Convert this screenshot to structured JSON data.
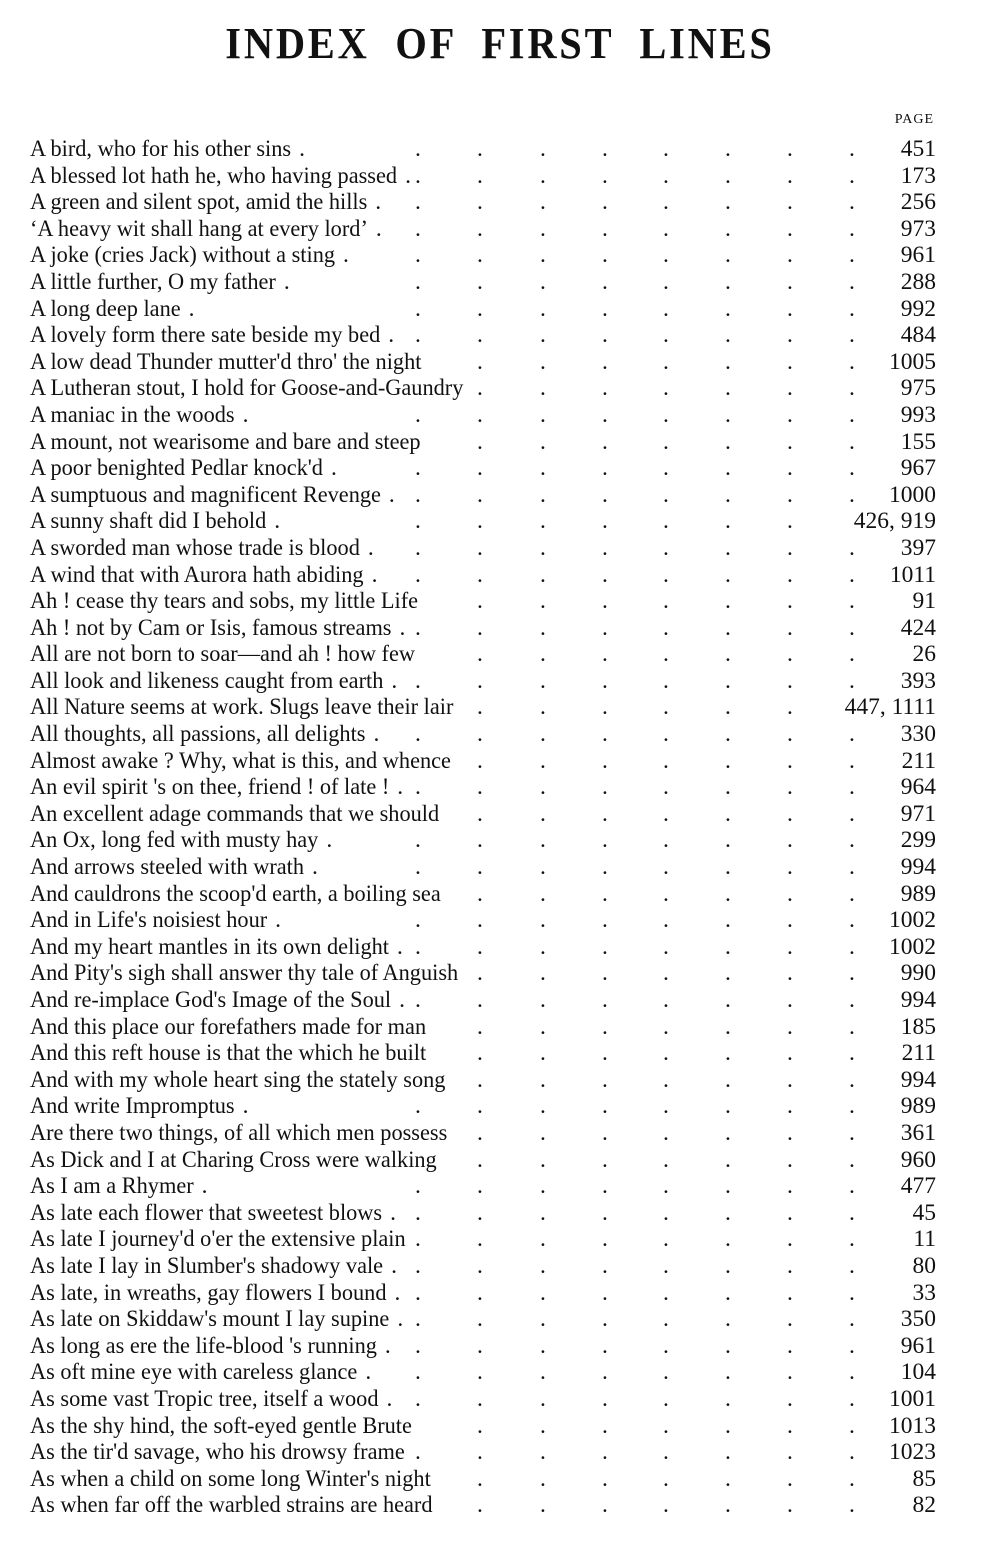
{
  "title": "INDEX OF FIRST LINES",
  "column_header": "PAGE",
  "entries": [
    {
      "line": "A bird, who for his other sins",
      "page": "451"
    },
    {
      "line": "A blessed lot hath he, who having passed",
      "page": "173"
    },
    {
      "line": "A green and silent spot, amid the hills",
      "page": "256"
    },
    {
      "line": "‘A heavy wit shall hang at every lord’",
      "page": "973"
    },
    {
      "line": "A joke (cries Jack) without a sting",
      "page": "961"
    },
    {
      "line": "A little further, O my father",
      "page": "288"
    },
    {
      "line": "A long deep lane",
      "page": "992"
    },
    {
      "line": "A lovely form there sate beside my bed",
      "page": "484"
    },
    {
      "line": "A low dead Thunder mutter'd thro' the night",
      "page": "1005"
    },
    {
      "line": "A Lutheran stout, I hold for Goose-and-Gaundry",
      "page": "975"
    },
    {
      "line": "A maniac in the woods",
      "page": "993"
    },
    {
      "line": "A mount, not wearisome and bare and steep",
      "page": "155"
    },
    {
      "line": "A poor benighted Pedlar knock'd",
      "page": "967"
    },
    {
      "line": "A sumptuous and magnificent Revenge",
      "page": "1000"
    },
    {
      "line": "A sunny shaft did I behold",
      "page": "426, 919"
    },
    {
      "line": "A sworded man whose trade is blood",
      "page": "397"
    },
    {
      "line": "A wind that with Aurora hath abiding",
      "page": "1011"
    },
    {
      "line": "Ah ! cease thy tears and sobs, my little Life",
      "page": "91"
    },
    {
      "line": "Ah ! not by Cam or Isis, famous streams",
      "page": "424"
    },
    {
      "line": "All are not born to soar—and ah ! how few",
      "page": "26"
    },
    {
      "line": "All look and likeness caught from earth",
      "page": "393"
    },
    {
      "line": "All Nature seems at work.  Slugs leave their lair",
      "page": "447, 1111"
    },
    {
      "line": "All thoughts, all passions, all delights",
      "page": "330"
    },
    {
      "line": "Almost awake ? Why, what is this, and whence",
      "page": "211"
    },
    {
      "line": "An evil spirit 's on thee, friend ! of late !",
      "page": "964"
    },
    {
      "line": "An excellent adage commands that we should",
      "page": "971"
    },
    {
      "line": "An Ox, long fed with musty hay",
      "page": "299"
    },
    {
      "line": "And arrows steeled with wrath",
      "page": "994"
    },
    {
      "line": "And cauldrons the scoop'd earth, a boiling sea",
      "page": "989"
    },
    {
      "line": "And in Life's noisiest hour",
      "page": "1002"
    },
    {
      "line": "And my heart mantles in its own delight",
      "page": "1002"
    },
    {
      "line": "And Pity's sigh shall answer thy tale of Anguish",
      "page": "990"
    },
    {
      "line": "And re-implace God's Image of the Soul",
      "page": "994"
    },
    {
      "line": "And this place our forefathers made for man",
      "page": "185"
    },
    {
      "line": "And this reft house is that the which he built",
      "page": "211"
    },
    {
      "line": "And with my whole heart sing the stately song",
      "page": "994"
    },
    {
      "line": "And write Impromptus",
      "page": "989"
    },
    {
      "line": "Are there two things, of all which men possess",
      "page": "361"
    },
    {
      "line": "As Dick and I at Charing Cross were walking",
      "page": "960"
    },
    {
      "line": "As I am a Rhymer",
      "page": "477"
    },
    {
      "line": "As late each flower that sweetest blows",
      "page": "45"
    },
    {
      "line": "As late I journey'd o'er the extensive plain",
      "page": "11"
    },
    {
      "line": "As late I lay in Slumber's shadowy vale",
      "page": "80"
    },
    {
      "line": "As late, in wreaths, gay flowers I bound",
      "page": "33"
    },
    {
      "line": "As late on Skiddaw's mount I lay supine",
      "page": "350"
    },
    {
      "line": "As long as ere the life-blood 's running",
      "page": "961"
    },
    {
      "line": "As oft mine eye with careless glance",
      "page": "104"
    },
    {
      "line": "As some vast Tropic tree, itself a wood",
      "page": "1001"
    },
    {
      "line": "As the shy hind, the soft-eyed gentle Brute",
      "page": "1013"
    },
    {
      "line": "As the tir'd savage, who his drowsy frame",
      "page": "1023"
    },
    {
      "line": "As when a child on some long Winter's night",
      "page": "85"
    },
    {
      "line": "As when far off the warbled strains are heard",
      "page": "82"
    }
  ]
}
